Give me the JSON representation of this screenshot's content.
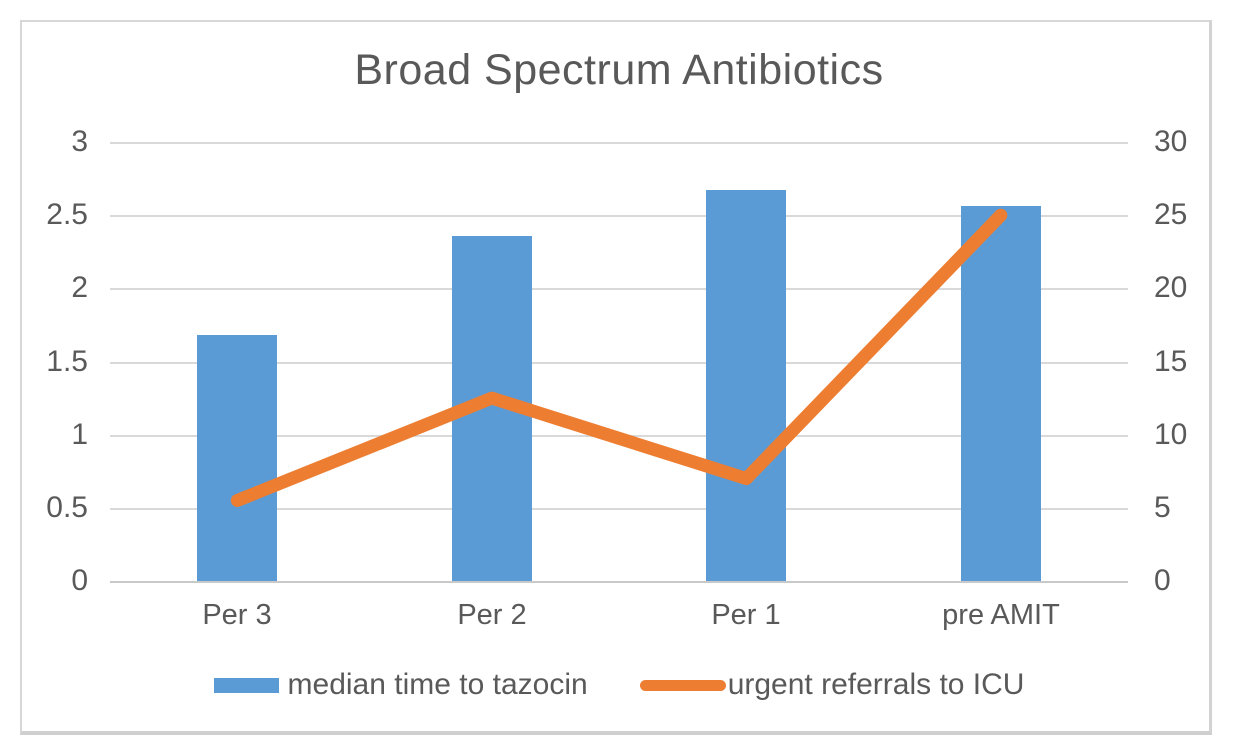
{
  "title": "Broad Spectrum Antibiotics",
  "colors": {
    "bar_blue": "#5b9bd5",
    "line_orange": "#ed7d31",
    "text_gray": "#595959",
    "gridline_gray": "#d9d9d9",
    "frame_border": "#d7d7d7"
  },
  "chart_data": {
    "type": "combo-bar-line",
    "title": "Broad Spectrum Antibiotics",
    "categories": [
      "Per 3",
      "Per 2",
      "Per 1",
      "pre AMIT"
    ],
    "series": [
      {
        "name": "median time to tazocin",
        "type": "bar",
        "axis": "left",
        "color": "#5b9bd5",
        "values": [
          1.68,
          2.36,
          2.67,
          2.56
        ]
      },
      {
        "name": "urgent referrals to ICU",
        "type": "line",
        "axis": "right",
        "color": "#ed7d31",
        "values": [
          5.5,
          12.5,
          7,
          25
        ]
      }
    ],
    "left_axis": {
      "min": 0,
      "max": 3,
      "tick_labels": [
        "3",
        "2.5",
        "2",
        "1.5",
        "1",
        "0.5",
        "0"
      ]
    },
    "right_axis": {
      "min": 0,
      "max": 30,
      "tick_labels": [
        "30",
        "25",
        "20",
        "15",
        "10",
        "5",
        "0"
      ]
    },
    "grid": true,
    "legend_position": "bottom"
  }
}
